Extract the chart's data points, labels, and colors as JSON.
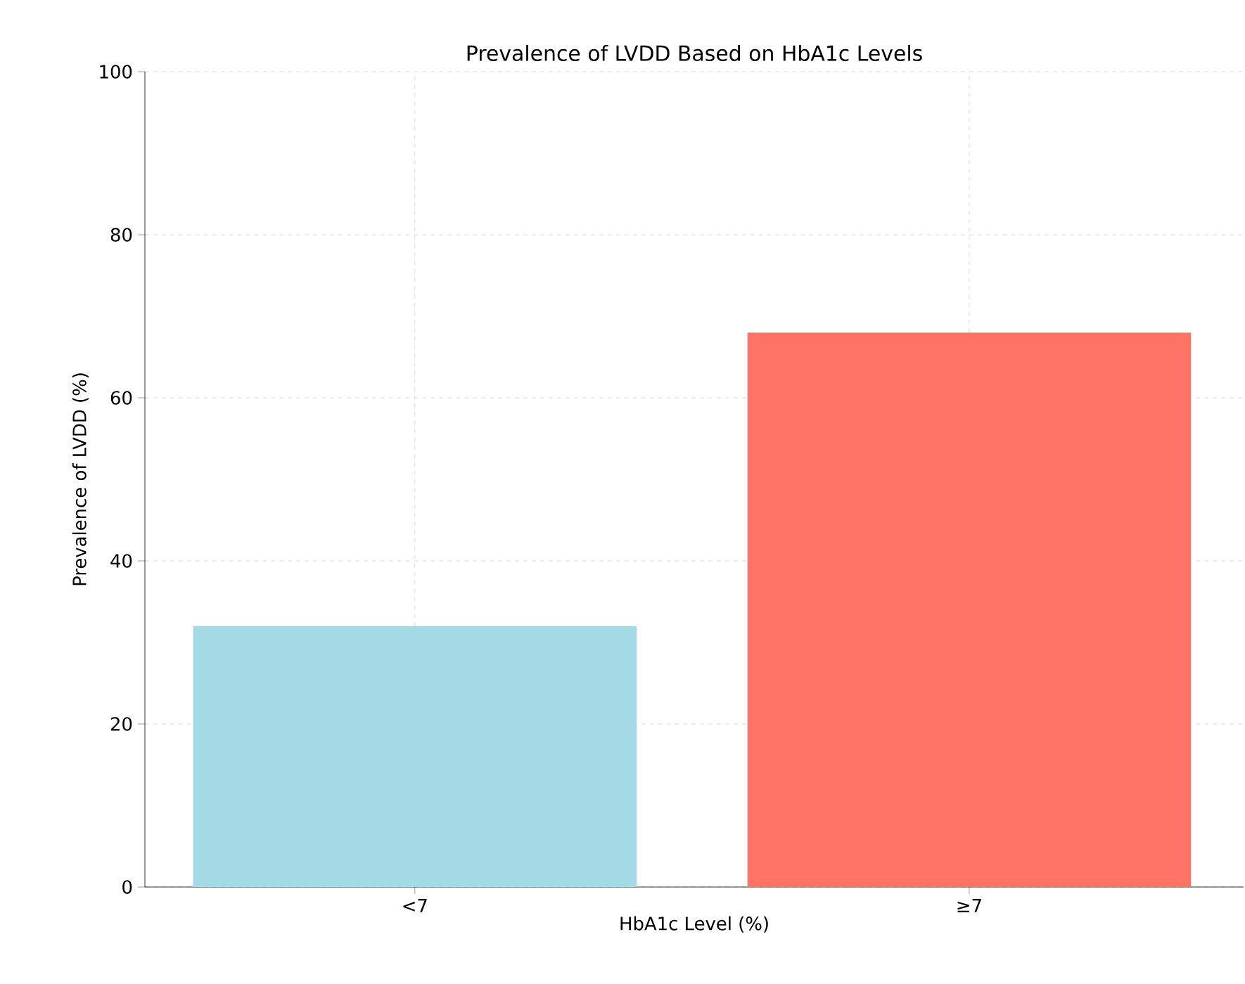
{
  "chart_data": {
    "type": "bar",
    "title": "Prevalence of LVDD Based on HbA1c Levels",
    "xlabel": "HbA1c Level (%)",
    "ylabel": "Prevalence of LVDD (%)",
    "categories": [
      "<7",
      "≥7"
    ],
    "values": [
      32,
      68
    ],
    "colors": [
      "#a3dae6",
      "#ff7366"
    ],
    "ylim": [
      0,
      100
    ],
    "yticks": [
      0,
      20,
      40,
      60,
      80,
      100
    ],
    "grid": true
  }
}
